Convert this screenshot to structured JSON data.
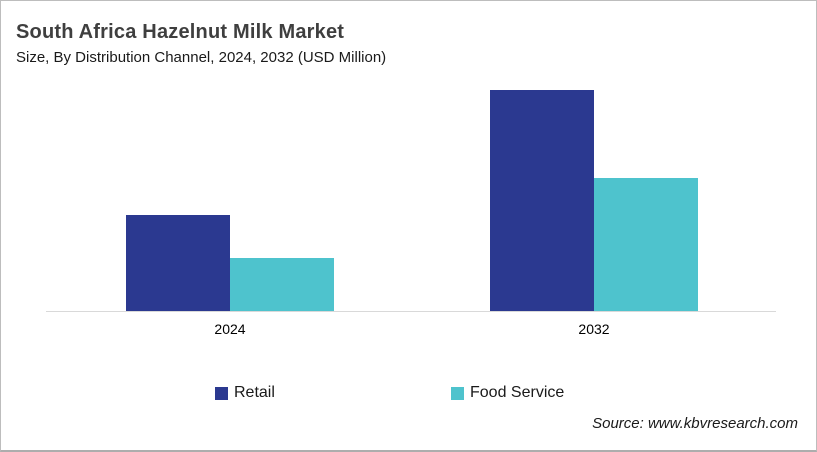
{
  "header": {
    "title": "South Africa Hazelnut Milk Market",
    "subtitle": "Size, By Distribution Channel, 2024, 2032 (USD Million)"
  },
  "chart_data": {
    "type": "bar",
    "title": "South Africa Hazelnut Milk Market",
    "subtitle": "Size, By Distribution Channel, 2024, 2032 (USD Million)",
    "categories": [
      "2024",
      "2032"
    ],
    "series": [
      {
        "name": "Retail",
        "color": "#2B3990",
        "values": [
          43.4,
          100
        ]
      },
      {
        "name": "Food Service",
        "color": "#4EC3CD",
        "values": [
          24.0,
          60.2
        ]
      }
    ],
    "xlabel": "",
    "ylabel": "",
    "ylim": [
      0,
      104
    ],
    "value_units": "relative units (y-axis not labeled in source image)",
    "grid": false,
    "y_axis_visible": false,
    "legend_position": "bottom"
  },
  "source": {
    "text": "Source: www.kbvresearch.com"
  },
  "colors": {
    "retail": "#2B3990",
    "food_service": "#4EC3CD",
    "axis_line": "#D9D9D9",
    "frame_border": "#BDBDBD",
    "title_text": "#3F3F3F",
    "body_text": "#1A1A1A"
  }
}
